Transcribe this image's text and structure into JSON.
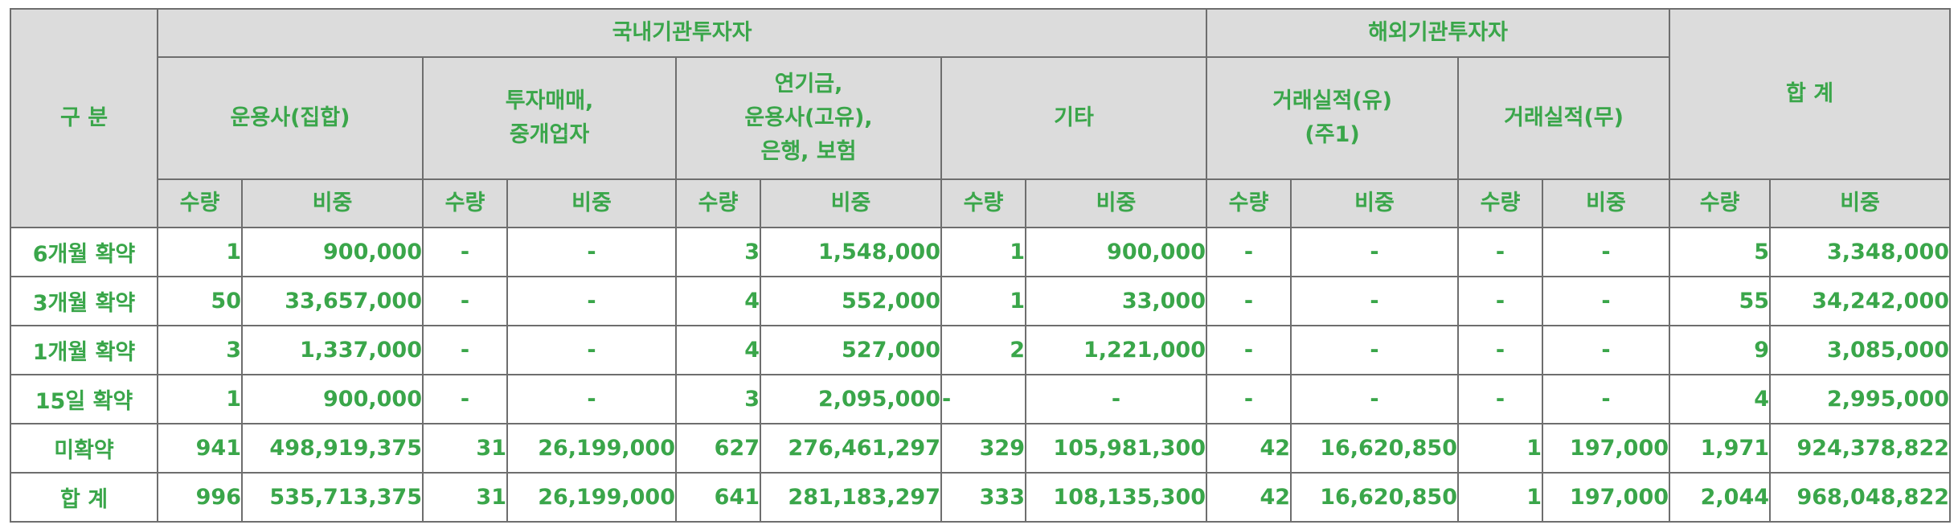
{
  "header": {
    "division": "구 분",
    "domestic": "국내기관투자자",
    "foreign": "해외기관투자자",
    "total": "합 계",
    "groups": {
      "asset_mgmt": "운용사(집합)",
      "dealers_line1": "투자매매,",
      "dealers_line2": "중개업자",
      "pension_line1": "연기금,",
      "pension_line2": "운용사(고유),",
      "pension_line3": "은행, 보험",
      "other": "기타",
      "with_record_line1": "거래실적(유)",
      "with_record_line2": "(주1)",
      "no_record": "거래실적(무)"
    },
    "qty": "수량",
    "ratio": "비중"
  },
  "rows": [
    {
      "label": "6개월 확약",
      "cells": [
        "1",
        "900,000",
        "-",
        "-",
        "3",
        "1,548,000",
        "1",
        "900,000",
        "-",
        "-",
        "-",
        "-",
        "5",
        "3,348,000"
      ]
    },
    {
      "label": "3개월 확약",
      "cells": [
        "50",
        "33,657,000",
        "-",
        "-",
        "4",
        "552,000",
        "1",
        "33,000",
        "-",
        "-",
        "-",
        "-",
        "55",
        "34,242,000"
      ]
    },
    {
      "label": "1개월 확약",
      "cells": [
        "3",
        "1,337,000",
        "-",
        "-",
        "4",
        "527,000",
        "2",
        "1,221,000",
        "-",
        "-",
        "-",
        "-",
        "9",
        "3,085,000"
      ]
    },
    {
      "label": "15일 확약",
      "cells": [
        "1",
        "900,000",
        "-",
        "-",
        "3",
        "2,095,000",
        "-",
        "-",
        "-",
        "-",
        "-",
        "-",
        "4",
        "2,995,000"
      ]
    },
    {
      "label": "미확약",
      "cells": [
        "941",
        "498,919,375",
        "31",
        "26,199,000",
        "627",
        "276,461,297",
        "329",
        "105,981,300",
        "42",
        "16,620,850",
        "1",
        "197,000",
        "1,971",
        "924,378,822"
      ]
    },
    {
      "label": "합 계",
      "cells": [
        "996",
        "535,713,375",
        "31",
        "26,199,000",
        "641",
        "281,183,297",
        "333",
        "108,135,300",
        "42",
        "16,620,850",
        "1",
        "197,000",
        "2,044",
        "968,048,822"
      ]
    }
  ]
}
